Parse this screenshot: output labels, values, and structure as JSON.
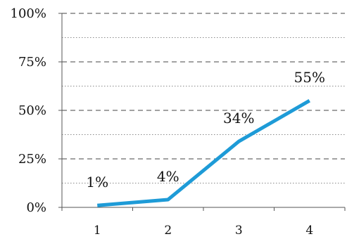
{
  "chart_data": {
    "type": "line",
    "categories": [
      "1",
      "2",
      "3",
      "4"
    ],
    "series": [
      {
        "values": [
          1,
          4,
          34,
          55
        ],
        "labels": [
          "1%",
          "4%",
          "34%",
          "55%"
        ],
        "color": "#1e9bd7"
      }
    ],
    "y_ticks": [
      0,
      25,
      50,
      75,
      100
    ],
    "y_tick_labels": [
      "0%",
      "25%",
      "50%",
      "75%",
      "100%"
    ],
    "ylim": [
      0,
      100
    ],
    "gridlines": "major dashed, minor dotted",
    "title": "",
    "xlabel": "",
    "ylabel": ""
  }
}
